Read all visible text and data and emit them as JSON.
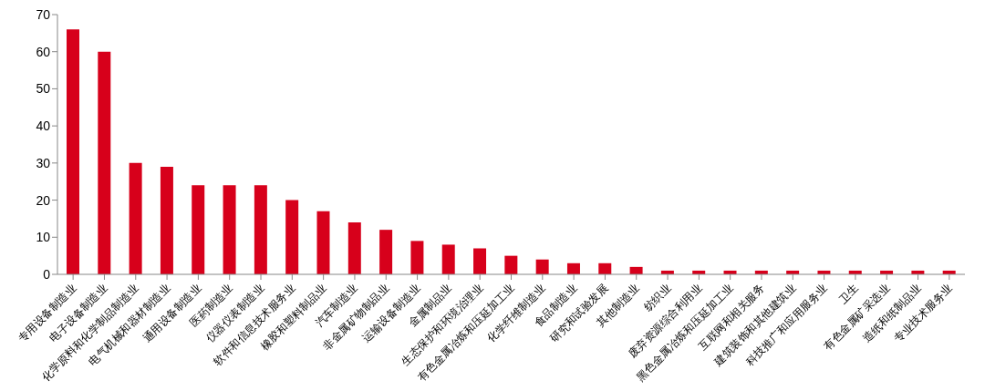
{
  "chart_data": {
    "type": "bar",
    "categories": [
      "专用设备制造业",
      "电子设备制造业",
      "化学原料和化学制品制造业",
      "电气机械和器材制造业",
      "通用设备制造业",
      "医药制造业",
      "仪器仪表制造业",
      "软件和信息技术服务业",
      "橡胶和塑料制品业",
      "汽车制造业",
      "非金属矿物制品业",
      "运输设备制造业",
      "金属制品业",
      "生态保护和环境治理业",
      "有色金属冶炼和压延加工业",
      "化学纤维制造业",
      "食品制造业",
      "研究和试验发展",
      "其他制造业",
      "纺织业",
      "废弃资源综合利用业",
      "黑色金属冶炼和压延加工业",
      "互联网和相关服务",
      "建筑装饰和其他建筑业",
      "科技推广和应用服务业",
      "卫生",
      "有色金属矿采选业",
      "造纸和纸制品业",
      "专业技术服务业"
    ],
    "values": [
      66,
      60,
      30,
      29,
      24,
      24,
      24,
      20,
      17,
      14,
      12,
      9,
      8,
      7,
      5,
      4,
      3,
      3,
      2,
      1,
      1,
      1,
      1,
      1,
      1,
      1,
      1,
      1,
      1
    ],
    "color": "#d7001b",
    "ylim": [
      0,
      70
    ],
    "yticks": [
      0,
      10,
      20,
      30,
      40,
      50,
      60,
      70
    ],
    "grid": false
  }
}
